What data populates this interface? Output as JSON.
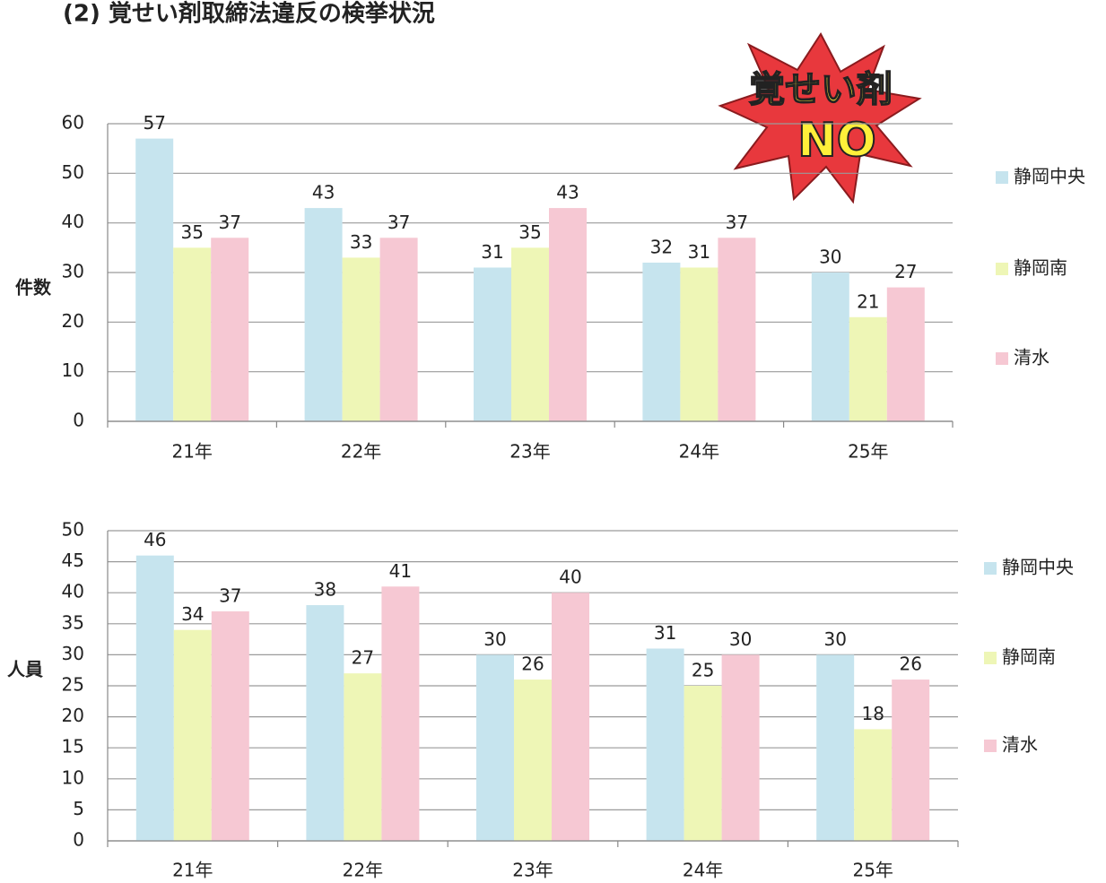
{
  "title": "(2) 覚せい剤取締法違反の検挙状況",
  "badge": {
    "top": "覚せい剤",
    "bottom": "NO"
  },
  "chart_data": [
    {
      "type": "bar",
      "ylabel": "件数",
      "categories": [
        "21年",
        "22年",
        "23年",
        "24年",
        "25年"
      ],
      "series": [
        {
          "name": "静岡中央",
          "color": "#c6e4ee",
          "values": [
            57,
            43,
            31,
            32,
            30
          ]
        },
        {
          "name": "静岡南",
          "color": "#eef6b6",
          "values": [
            35,
            33,
            35,
            31,
            21
          ]
        },
        {
          "name": "清水",
          "color": "#f6c8d3",
          "values": [
            37,
            37,
            43,
            37,
            27
          ]
        }
      ],
      "ylim": [
        0,
        60
      ],
      "yticks": [
        0,
        10,
        20,
        30,
        40,
        50,
        60
      ],
      "grid": true,
      "legend": "right"
    },
    {
      "type": "bar",
      "ylabel": "人員",
      "categories": [
        "21年",
        "22年",
        "23年",
        "24年",
        "25年"
      ],
      "series": [
        {
          "name": "静岡中央",
          "color": "#c6e4ee",
          "values": [
            46,
            38,
            30,
            31,
            30
          ]
        },
        {
          "name": "静岡南",
          "color": "#eef6b6",
          "values": [
            34,
            27,
            26,
            25,
            18
          ]
        },
        {
          "name": "清水",
          "color": "#f6c8d3",
          "values": [
            37,
            41,
            40,
            30,
            26
          ]
        }
      ],
      "ylim": [
        0,
        50
      ],
      "yticks": [
        0,
        5,
        10,
        15,
        20,
        25,
        30,
        35,
        40,
        45,
        50
      ],
      "grid": true,
      "legend": "right"
    }
  ]
}
